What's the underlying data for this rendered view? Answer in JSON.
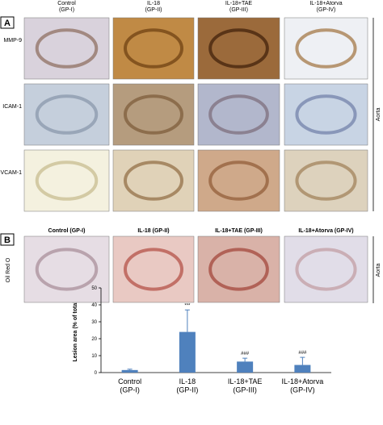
{
  "panel_a": {
    "letter": "A",
    "columns": [
      "Control\n(GP-I)",
      "IL-18\n(GP-II)",
      "IL-18+TAE\n(GP-III)",
      "IL-18+Atorva\n(GP-IV)"
    ],
    "rows": [
      "MMP-9",
      "ICAM-1",
      "VCAM-1"
    ],
    "side_label": "Aorta"
  },
  "panel_b": {
    "letter": "B",
    "columns": [
      "Control (GP-I)",
      "IL-18 (GP-II)",
      "IL-18+TAE (GP-III)",
      "IL-18+Atorva (GP-IV)"
    ],
    "rows": [
      "Oil Red O"
    ],
    "side_label": "Aorta"
  },
  "chart_data": {
    "type": "bar",
    "ylabel": "Lesion area (% of total)",
    "categories": [
      "Control\n(GP-I)",
      "IL-18\n(GP-II)",
      "IL-18+TAE\n(GP-III)",
      "IL-18+Atorva\n(GP-IV)"
    ],
    "values": [
      1.5,
      24,
      6.5,
      4.5
    ],
    "errors": [
      0.5,
      13,
      2,
      4.5
    ],
    "value_annotations": [
      null,
      "***",
      "###",
      "###"
    ],
    "color": "#4f81bd",
    "ylim": [
      0,
      50
    ],
    "yticks": [
      0,
      10,
      20,
      30,
      40,
      50
    ]
  }
}
